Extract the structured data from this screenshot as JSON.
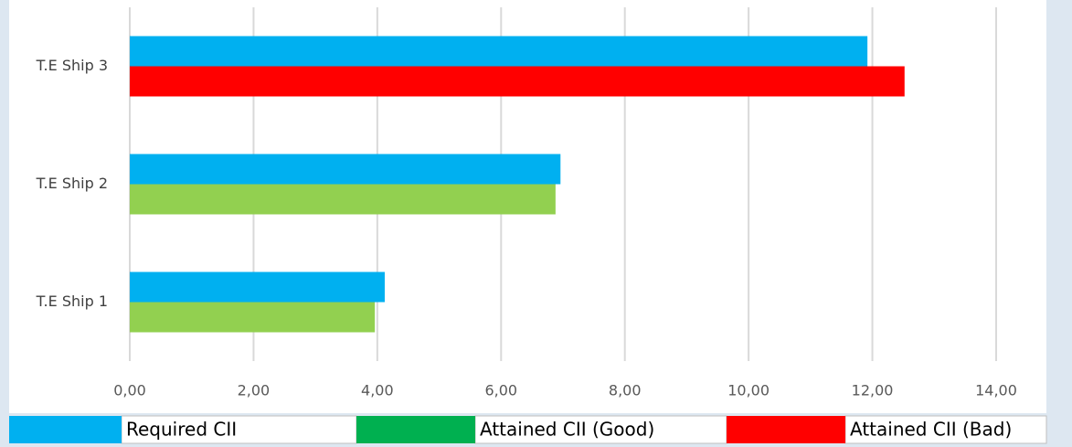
{
  "chart_data": {
    "type": "hbar",
    "categories": [
      "T.E Ship 1",
      "T.E Ship 2",
      "T.E Ship 3"
    ],
    "series": [
      {
        "name": "Required CII",
        "color": "#00b0f0",
        "legend_color": "#00b0f0",
        "values": [
          4.12,
          6.96,
          11.92
        ]
      },
      {
        "name": "Attained CII (Good)",
        "color": "#92d050",
        "legend_color": "#00b050",
        "values": [
          3.96,
          6.88,
          null
        ]
      },
      {
        "name": "Attained CII (Bad)",
        "color": "#ff0000",
        "legend_color": "#ff0000",
        "values": [
          null,
          null,
          12.52
        ]
      }
    ],
    "xlim": [
      0,
      14
    ],
    "xticks": [
      {
        "value": 0,
        "label": "0,00"
      },
      {
        "value": 2,
        "label": "2,00"
      },
      {
        "value": 4,
        "label": "4,00"
      },
      {
        "value": 6,
        "label": "6,00"
      },
      {
        "value": 8,
        "label": "8,00"
      },
      {
        "value": 10,
        "label": "10,00"
      },
      {
        "value": 12,
        "label": "12,00"
      },
      {
        "value": 14,
        "label": "14,00"
      }
    ],
    "grid": true,
    "legend": "bottom"
  }
}
